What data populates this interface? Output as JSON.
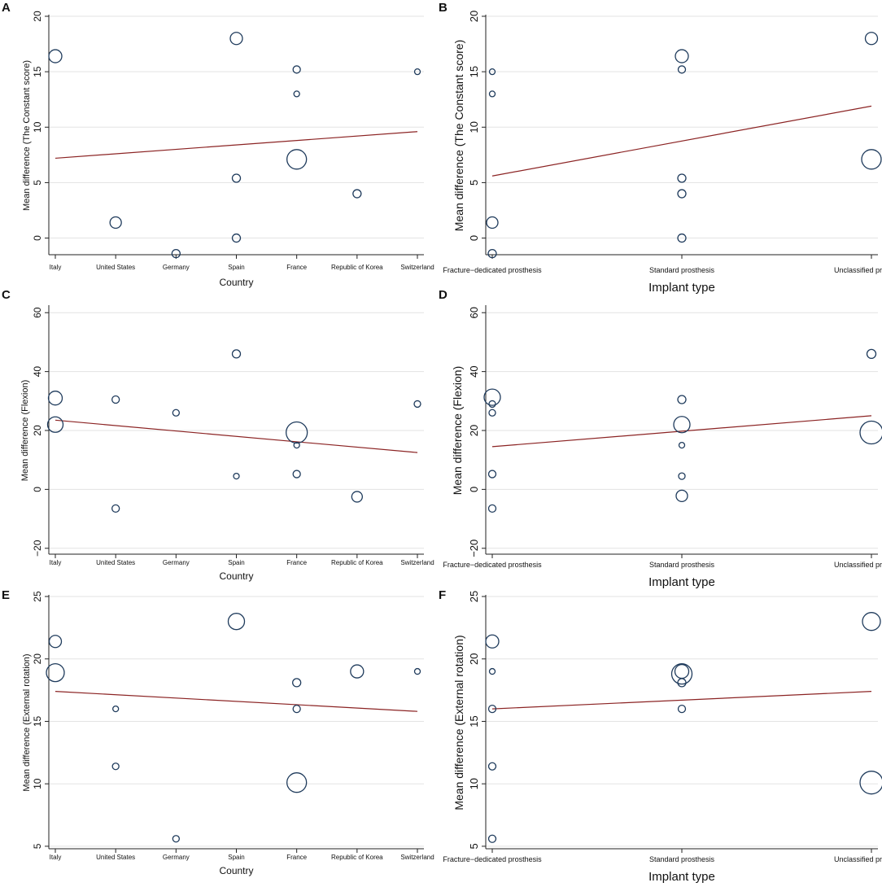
{
  "figure": {
    "colors": {
      "marker": "#1f3b5c",
      "fit_line": "#8b2323",
      "gridline": "#e3e3e3",
      "axis": "#222222"
    }
  },
  "chart_data": [
    {
      "panel": "A",
      "type": "scatter",
      "xlabel": "Country",
      "ylabel": "Mean difference (The Constant score)",
      "categories": [
        "Italy",
        "United States",
        "Germany",
        "Spain",
        "France",
        "Republic of Korea",
        "Switzerland"
      ],
      "ylim": [
        -1.5,
        20
      ],
      "yticks": [
        0,
        5,
        10,
        15,
        20
      ],
      "points": [
        {
          "x": 0,
          "y": 16.4,
          "size": 8
        },
        {
          "x": 1,
          "y": 1.4,
          "size": 7
        },
        {
          "x": 2,
          "y": -1.4,
          "size": 5
        },
        {
          "x": 3,
          "y": 18.0,
          "size": 7.5
        },
        {
          "x": 3,
          "y": 5.4,
          "size": 5
        },
        {
          "x": 3,
          "y": 0.0,
          "size": 5
        },
        {
          "x": 4,
          "y": 15.2,
          "size": 4.5
        },
        {
          "x": 4,
          "y": 13.0,
          "size": 3.5
        },
        {
          "x": 4,
          "y": 7.1,
          "size": 12
        },
        {
          "x": 5,
          "y": 4.0,
          "size": 5
        },
        {
          "x": 6,
          "y": 15.0,
          "size": 3.5
        }
      ],
      "fit_line": {
        "y_start": 7.2,
        "y_end": 9.6
      }
    },
    {
      "panel": "B",
      "type": "scatter",
      "xlabel": "Implant type",
      "ylabel": "Mean difference (The Constant score)",
      "categories": [
        "Fracture−dedicated prosthesis",
        "Standard prosthesis",
        "Unclassified prosthesis"
      ],
      "ylim": [
        -1.5,
        20
      ],
      "yticks": [
        0,
        5,
        10,
        15,
        20
      ],
      "points": [
        {
          "x": 0,
          "y": 15.0,
          "size": 3.5
        },
        {
          "x": 0,
          "y": 13.0,
          "size": 3.5
        },
        {
          "x": 0,
          "y": 1.4,
          "size": 7
        },
        {
          "x": 0,
          "y": -1.4,
          "size": 5
        },
        {
          "x": 1,
          "y": 16.4,
          "size": 8
        },
        {
          "x": 1,
          "y": 15.2,
          "size": 4.5
        },
        {
          "x": 1,
          "y": 5.4,
          "size": 5
        },
        {
          "x": 1,
          "y": 4.0,
          "size": 5
        },
        {
          "x": 1,
          "y": 0.0,
          "size": 5
        },
        {
          "x": 2,
          "y": 18.0,
          "size": 7.5
        },
        {
          "x": 2,
          "y": 7.1,
          "size": 12
        }
      ],
      "fit_line": {
        "y_start": 5.6,
        "y_end": 11.9
      }
    },
    {
      "panel": "C",
      "type": "scatter",
      "xlabel": "Country",
      "ylabel": "Mean difference (Flexion)",
      "categories": [
        "Italy",
        "United States",
        "Germany",
        "Spain",
        "France",
        "Republic of Korea",
        "Switzerland"
      ],
      "ylim": [
        -22,
        62
      ],
      "yticks": [
        -20,
        0,
        20,
        40,
        60
      ],
      "points": [
        {
          "x": 0,
          "y": 31.0,
          "size": 8.5
        },
        {
          "x": 0,
          "y": 22.0,
          "size": 9.5
        },
        {
          "x": 1,
          "y": 30.5,
          "size": 4.5
        },
        {
          "x": 1,
          "y": -6.5,
          "size": 4.5
        },
        {
          "x": 2,
          "y": 26.0,
          "size": 4
        },
        {
          "x": 3,
          "y": 46.0,
          "size": 5
        },
        {
          "x": 3,
          "y": 4.5,
          "size": 3.5
        },
        {
          "x": 4,
          "y": 19.3,
          "size": 13
        },
        {
          "x": 4,
          "y": 15.0,
          "size": 3.5
        },
        {
          "x": 4,
          "y": 5.2,
          "size": 4.5
        },
        {
          "x": 5,
          "y": -2.5,
          "size": 6.5
        },
        {
          "x": 6,
          "y": 29.0,
          "size": 4
        }
      ],
      "fit_line": {
        "y_start": 23.5,
        "y_end": 12.5
      }
    },
    {
      "panel": "D",
      "type": "scatter",
      "xlabel": "Implant type",
      "ylabel": "Mean difference (Flexion)",
      "categories": [
        "Fracture−dedicated prosthesis",
        "Standard prosthesis",
        "Unclassified prosthesis"
      ],
      "ylim": [
        -22,
        62
      ],
      "yticks": [
        -20,
        0,
        20,
        40,
        60
      ],
      "points": [
        {
          "x": 0,
          "y": 31.3,
          "size": 10
        },
        {
          "x": 0,
          "y": 29.0,
          "size": 4
        },
        {
          "x": 0,
          "y": 26.0,
          "size": 4
        },
        {
          "x": 0,
          "y": 5.2,
          "size": 4.5
        },
        {
          "x": 0,
          "y": -6.5,
          "size": 4.5
        },
        {
          "x": 1,
          "y": 30.5,
          "size": 5
        },
        {
          "x": 1,
          "y": 22.0,
          "size": 10
        },
        {
          "x": 1,
          "y": 15.0,
          "size": 3.5
        },
        {
          "x": 1,
          "y": 4.5,
          "size": 4
        },
        {
          "x": 1,
          "y": -2.2,
          "size": 7
        },
        {
          "x": 2,
          "y": 46.0,
          "size": 5.5
        },
        {
          "x": 2,
          "y": 19.3,
          "size": 14
        }
      ],
      "fit_line": {
        "y_start": 14.5,
        "y_end": 25.0
      }
    },
    {
      "panel": "E",
      "type": "scatter",
      "xlabel": "Country",
      "ylabel": "Mean difference (External rotation)",
      "categories": [
        "Italy",
        "United States",
        "Germany",
        "Spain",
        "France",
        "Republic of Korea",
        "Switzerland"
      ],
      "ylim": [
        4.8,
        25
      ],
      "yticks": [
        5,
        10,
        15,
        20,
        25
      ],
      "points": [
        {
          "x": 0,
          "y": 21.4,
          "size": 7.5
        },
        {
          "x": 0,
          "y": 18.9,
          "size": 11
        },
        {
          "x": 1,
          "y": 16.0,
          "size": 3.5
        },
        {
          "x": 1,
          "y": 11.4,
          "size": 4
        },
        {
          "x": 2,
          "y": 5.6,
          "size": 4
        },
        {
          "x": 3,
          "y": 23.0,
          "size": 10
        },
        {
          "x": 4,
          "y": 18.1,
          "size": 5
        },
        {
          "x": 4,
          "y": 16.0,
          "size": 4.5
        },
        {
          "x": 4,
          "y": 10.1,
          "size": 12
        },
        {
          "x": 5,
          "y": 19.0,
          "size": 8
        },
        {
          "x": 6,
          "y": 19.0,
          "size": 3.5
        }
      ],
      "fit_line": {
        "y_start": 17.4,
        "y_end": 15.8
      }
    },
    {
      "panel": "F",
      "type": "scatter",
      "xlabel": "Implant type",
      "ylabel": "Mean difference (External rotation)",
      "categories": [
        "Fracture−dedicated prosthesis",
        "Standard prosthesis",
        "Unclassified prosthesis"
      ],
      "ylim": [
        4.8,
        25
      ],
      "yticks": [
        5,
        10,
        15,
        20,
        25
      ],
      "points": [
        {
          "x": 0,
          "y": 21.4,
          "size": 8
        },
        {
          "x": 0,
          "y": 19.0,
          "size": 3.5
        },
        {
          "x": 0,
          "y": 16.0,
          "size": 4.5
        },
        {
          "x": 0,
          "y": 11.4,
          "size": 4.5
        },
        {
          "x": 0,
          "y": 5.6,
          "size": 4.5
        },
        {
          "x": 1,
          "y": 19.0,
          "size": 8.5
        },
        {
          "x": 1,
          "y": 18.8,
          "size": 12.5
        },
        {
          "x": 1,
          "y": 18.1,
          "size": 5
        },
        {
          "x": 1,
          "y": 16.0,
          "size": 4.5
        },
        {
          "x": 2,
          "y": 23.0,
          "size": 11
        },
        {
          "x": 2,
          "y": 10.1,
          "size": 14
        }
      ],
      "fit_line": {
        "y_start": 16.0,
        "y_end": 17.4
      }
    }
  ]
}
